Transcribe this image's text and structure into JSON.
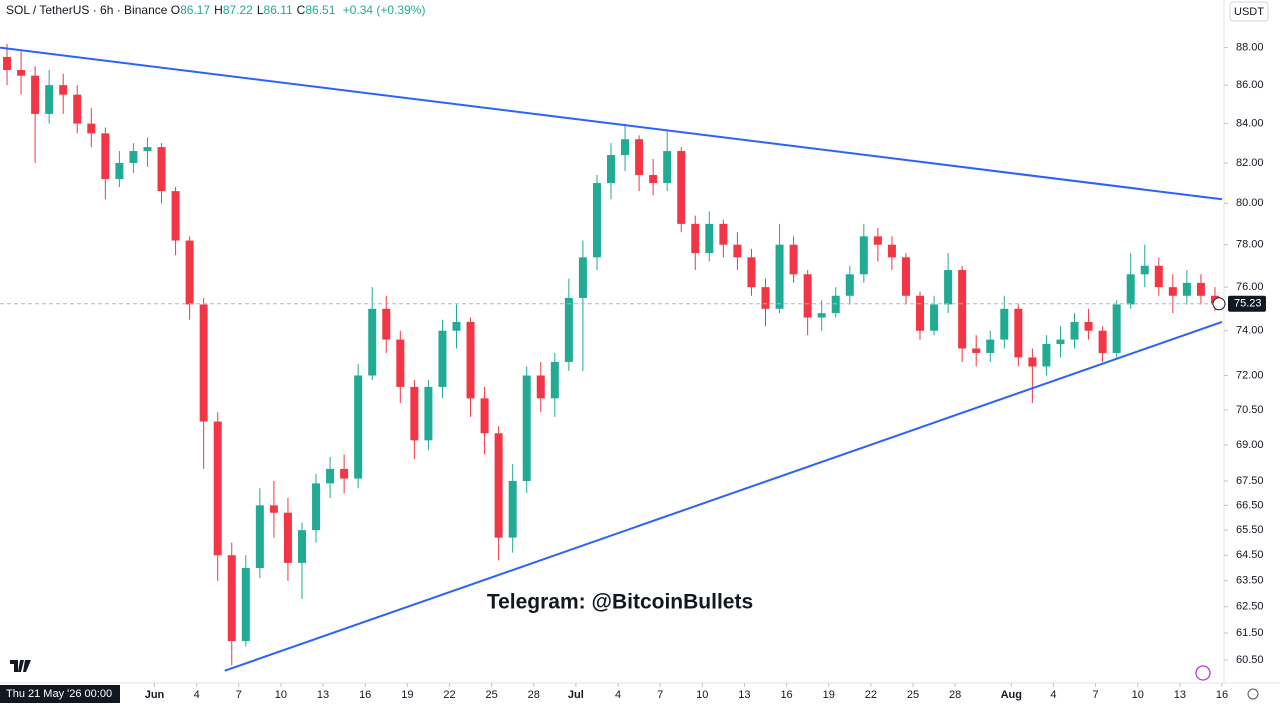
{
  "chart_data": {
    "type": "candlestick",
    "symbol": "SOL / TetherUS · 6h · Binance",
    "ohlc_header": [
      {
        "label": "O",
        "value": "86.17"
      },
      {
        "label": "H",
        "value": "87.22"
      },
      {
        "label": "L",
        "value": "86.11"
      },
      {
        "label": "C",
        "value": "86.51"
      }
    ],
    "change": "+0.34 (+0.39%)",
    "currency": "USDT",
    "watermark": "Telegram: @BitcoinBullets",
    "crosshair_label": "Thu 21 May '26  00:00",
    "log_scale": true,
    "up_color": "#22ab94",
    "down_color": "#f23645",
    "x": [
      "2026-05-21",
      "2026-05-22",
      "2026-05-23",
      "2026-05-24",
      "2026-05-25",
      "2026-05-26",
      "2026-05-27",
      "2026-05-28",
      "2026-05-29",
      "2026-05-30",
      "2026-05-31",
      "2026-06-01",
      "2026-06-02",
      "2026-06-03",
      "2026-06-04",
      "2026-06-05",
      "2026-06-06",
      "2026-06-07",
      "2026-06-08",
      "2026-06-09",
      "2026-06-10",
      "2026-06-11",
      "2026-06-12",
      "2026-06-13",
      "2026-06-14",
      "2026-06-15",
      "2026-06-16",
      "2026-06-17",
      "2026-06-18",
      "2026-06-19",
      "2026-06-20",
      "2026-06-21",
      "2026-06-22",
      "2026-06-23",
      "2026-06-24",
      "2026-06-25",
      "2026-06-26",
      "2026-06-27",
      "2026-06-28",
      "2026-06-29",
      "2026-06-30",
      "2026-07-01",
      "2026-07-02",
      "2026-07-03",
      "2026-07-04",
      "2026-07-05",
      "2026-07-06",
      "2026-07-07",
      "2026-07-08",
      "2026-07-09",
      "2026-07-10",
      "2026-07-11",
      "2026-07-12",
      "2026-07-13",
      "2026-07-14",
      "2026-07-15",
      "2026-07-16",
      "2026-07-17",
      "2026-07-18",
      "2026-07-19",
      "2026-07-20",
      "2026-07-21",
      "2026-07-22",
      "2026-07-23",
      "2026-07-24",
      "2026-07-25",
      "2026-07-26",
      "2026-07-27",
      "2026-07-28",
      "2026-07-29",
      "2026-07-30",
      "2026-07-31",
      "2026-08-01",
      "2026-08-02",
      "2026-08-03",
      "2026-08-04",
      "2026-08-05",
      "2026-08-06",
      "2026-08-07",
      "2026-08-08",
      "2026-08-09",
      "2026-08-10",
      "2026-08-11",
      "2026-08-12",
      "2026-08-13",
      "2026-08-14",
      "2026-08-15"
    ],
    "open": [
      87.5,
      86.8,
      86.5,
      84.5,
      86.0,
      85.5,
      84.0,
      83.5,
      81.2,
      82.0,
      82.6,
      82.8,
      80.6,
      78.2,
      75.2,
      70.0,
      64.5,
      61.2,
      64.0,
      66.5,
      66.2,
      64.2,
      65.5,
      67.4,
      68.0,
      67.6,
      72.0,
      75.0,
      73.6,
      71.5,
      69.2,
      71.5,
      74.0,
      74.4,
      71.0,
      69.5,
      65.2,
      67.5,
      72.0,
      71.0,
      72.6,
      75.5,
      77.4,
      81.0,
      82.4,
      83.2,
      81.4,
      81.0,
      82.6,
      79.0,
      77.6,
      79.0,
      78.0,
      77.4,
      76.0,
      75.0,
      78.0,
      76.6,
      74.6,
      74.8,
      75.6,
      76.6,
      78.4,
      78.0,
      77.4,
      75.6,
      74.0,
      75.2,
      76.8,
      73.2,
      73.0,
      73.6,
      75.0,
      72.8,
      72.4,
      73.4,
      73.6,
      74.4,
      74.0,
      73.0,
      75.2,
      76.6,
      77.0,
      76.0,
      75.6,
      76.2,
      75.6
    ],
    "high": [
      88.2,
      87.8,
      87.0,
      86.8,
      86.6,
      86.0,
      84.8,
      83.8,
      82.6,
      83.0,
      83.3,
      83.0,
      80.8,
      78.4,
      75.5,
      70.4,
      65.0,
      64.5,
      67.2,
      67.5,
      66.8,
      65.8,
      67.8,
      68.5,
      68.6,
      72.5,
      76.0,
      75.6,
      74.0,
      71.8,
      71.8,
      74.5,
      75.2,
      74.6,
      71.5,
      69.8,
      68.2,
      72.4,
      72.6,
      73.0,
      76.4,
      78.2,
      81.4,
      83.0,
      84.0,
      83.4,
      82.2,
      83.6,
      82.8,
      79.4,
      79.6,
      79.2,
      78.6,
      77.8,
      76.4,
      79.0,
      78.4,
      76.8,
      75.4,
      76.0,
      77.0,
      79.0,
      78.8,
      78.4,
      77.6,
      75.8,
      75.6,
      77.6,
      77.0,
      73.8,
      74.0,
      75.6,
      75.2,
      73.2,
      73.8,
      74.2,
      74.8,
      75.0,
      74.2,
      75.4,
      77.6,
      78.0,
      77.4,
      76.6,
      76.8,
      76.6,
      76.0
    ],
    "low": [
      86.0,
      85.5,
      82.0,
      84.0,
      84.5,
      83.5,
      82.8,
      80.2,
      80.8,
      81.5,
      81.8,
      80.0,
      77.5,
      74.5,
      68.0,
      63.5,
      60.3,
      61.0,
      63.6,
      65.2,
      63.5,
      62.8,
      65.0,
      66.8,
      67.0,
      67.2,
      71.8,
      73.0,
      70.8,
      68.4,
      68.8,
      71.0,
      73.2,
      70.2,
      68.6,
      64.3,
      64.6,
      67.0,
      70.4,
      70.2,
      72.2,
      72.2,
      76.8,
      80.2,
      81.6,
      80.6,
      80.4,
      80.6,
      78.6,
      76.8,
      77.2,
      77.4,
      76.8,
      75.6,
      74.2,
      74.8,
      76.2,
      73.8,
      74.0,
      74.6,
      75.2,
      76.2,
      77.2,
      76.8,
      75.2,
      73.6,
      73.8,
      74.8,
      72.6,
      72.4,
      72.6,
      73.2,
      72.4,
      70.8,
      72.0,
      72.8,
      73.2,
      73.6,
      72.6,
      72.8,
      75.0,
      76.0,
      75.6,
      74.8,
      75.2,
      75.2,
      74.9
    ],
    "close": [
      86.8,
      86.5,
      84.5,
      86.0,
      85.5,
      84.0,
      83.5,
      81.2,
      82.0,
      82.6,
      82.8,
      80.6,
      78.2,
      75.2,
      70.0,
      64.5,
      61.2,
      64.0,
      66.5,
      66.2,
      64.2,
      65.5,
      67.4,
      68.0,
      67.6,
      72.0,
      75.0,
      73.6,
      71.5,
      69.2,
      71.5,
      74.0,
      74.4,
      71.0,
      69.5,
      65.2,
      67.5,
      72.0,
      71.0,
      72.6,
      75.5,
      77.4,
      81.0,
      82.4,
      83.2,
      81.4,
      81.0,
      82.6,
      79.0,
      77.6,
      79.0,
      78.0,
      77.4,
      76.0,
      75.0,
      78.0,
      76.6,
      74.6,
      74.8,
      75.6,
      76.6,
      78.4,
      78.0,
      77.4,
      75.6,
      74.0,
      75.2,
      76.8,
      73.2,
      73.0,
      73.6,
      75.0,
      72.8,
      72.4,
      73.4,
      73.6,
      74.4,
      74.0,
      73.0,
      75.2,
      76.6,
      77.0,
      76.0,
      75.6,
      76.2,
      75.6,
      75.2
    ],
    "last_price": 75.23,
    "trendlines": [
      {
        "color": "#2962ff",
        "points": [
          [
            "2026-05-21",
            88.0
          ],
          [
            "2026-08-16",
            80.2
          ]
        ]
      },
      {
        "color": "#2962ff",
        "points": [
          [
            "2026-06-06",
            60.1
          ],
          [
            "2026-08-16",
            74.4
          ]
        ]
      }
    ],
    "xlim": [
      "2026-05-21",
      "2026-08-16"
    ],
    "ylim": [
      59.65,
      90.6
    ],
    "yticks": [
      {
        "value": 88,
        "label": "88.00"
      },
      {
        "value": 86,
        "label": "86.00"
      },
      {
        "value": 84,
        "label": "84.00"
      },
      {
        "value": 82,
        "label": "82.00"
      },
      {
        "value": 80,
        "label": "80.00"
      },
      {
        "value": 78,
        "label": "78.00"
      },
      {
        "value": 76,
        "label": "76.00"
      },
      {
        "value": 74,
        "label": "74.00"
      },
      {
        "value": 72,
        "label": "72.00"
      },
      {
        "value": 70.5,
        "label": "70.50"
      },
      {
        "value": 69,
        "label": "69.00"
      },
      {
        "value": 67.5,
        "label": "67.50"
      },
      {
        "value": 66.5,
        "label": "66.50"
      },
      {
        "value": 65.5,
        "label": "65.50"
      },
      {
        "value": 64.5,
        "label": "64.50"
      },
      {
        "value": 63.5,
        "label": "63.50"
      },
      {
        "value": 62.5,
        "label": "62.50"
      },
      {
        "value": 61.5,
        "label": "61.50"
      },
      {
        "value": 60.5,
        "label": "60.50"
      }
    ],
    "xticks": [
      {
        "value": "2026-06-01",
        "label": "Jun"
      },
      {
        "value": "2026-06-04",
        "label": "4"
      },
      {
        "value": "2026-06-07",
        "label": "7"
      },
      {
        "value": "2026-06-10",
        "label": "10"
      },
      {
        "value": "2026-06-13",
        "label": "13"
      },
      {
        "value": "2026-06-16",
        "label": "16"
      },
      {
        "value": "2026-06-19",
        "label": "19"
      },
      {
        "value": "2026-06-22",
        "label": "22"
      },
      {
        "value": "2026-06-25",
        "label": "25"
      },
      {
        "value": "2026-06-28",
        "label": "28"
      },
      {
        "value": "2026-07-01",
        "label": "Jul"
      },
      {
        "value": "2026-07-04",
        "label": "4"
      },
      {
        "value": "2026-07-07",
        "label": "7"
      },
      {
        "value": "2026-07-10",
        "label": "10"
      },
      {
        "value": "2026-07-13",
        "label": "13"
      },
      {
        "value": "2026-07-16",
        "label": "16"
      },
      {
        "value": "2026-07-19",
        "label": "19"
      },
      {
        "value": "2026-07-22",
        "label": "22"
      },
      {
        "value": "2026-07-25",
        "label": "25"
      },
      {
        "value": "2026-07-28",
        "label": "28"
      },
      {
        "value": "2026-08-01",
        "label": "Aug"
      },
      {
        "value": "2026-08-04",
        "label": "4"
      },
      {
        "value": "2026-08-07",
        "label": "7"
      },
      {
        "value": "2026-08-10",
        "label": "10"
      },
      {
        "value": "2026-08-13",
        "label": "13"
      },
      {
        "value": "2026-08-16",
        "label": "16"
      }
    ],
    "grid": false
  }
}
